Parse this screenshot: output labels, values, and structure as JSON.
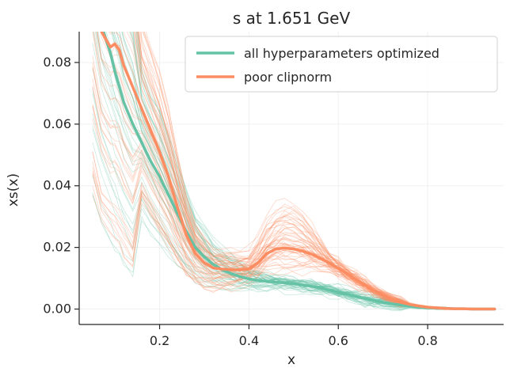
{
  "chart_data": {
    "type": "line",
    "title": "s at 1.651 GeV",
    "xlabel": "x",
    "ylabel": "xs(x)",
    "xlim": [
      0.02,
      0.97
    ],
    "ylim": [
      -0.005,
      0.09
    ],
    "xticks": [
      0.2,
      0.4,
      0.6,
      0.8
    ],
    "xtick_labels": [
      "0.2",
      "0.4",
      "0.6",
      "0.8"
    ],
    "yticks": [
      0.0,
      0.02,
      0.04,
      0.06,
      0.08
    ],
    "ytick_labels": [
      "0.00",
      "0.02",
      "0.04",
      "0.06",
      "0.08"
    ],
    "grid": true,
    "legend_position": "top-right",
    "replica_bands": true,
    "x": [
      0.05,
      0.07,
      0.09,
      0.1,
      0.11,
      0.12,
      0.14,
      0.16,
      0.18,
      0.2,
      0.22,
      0.24,
      0.26,
      0.28,
      0.3,
      0.32,
      0.34,
      0.36,
      0.38,
      0.4,
      0.42,
      0.44,
      0.46,
      0.48,
      0.5,
      0.52,
      0.54,
      0.56,
      0.58,
      0.6,
      0.62,
      0.64,
      0.66,
      0.68,
      0.7,
      0.72,
      0.74,
      0.76,
      0.78,
      0.8,
      0.82,
      0.84,
      0.86,
      0.88,
      0.9,
      0.92,
      0.95
    ],
    "series": [
      {
        "name": "all hyperparameters optimized",
        "color": "#66c2a5",
        "values": [
          0.11,
          0.092,
          0.083,
          0.077,
          0.072,
          0.067,
          0.06,
          0.054,
          0.048,
          0.043,
          0.037,
          0.031,
          0.025,
          0.02,
          0.017,
          0.0145,
          0.0128,
          0.0115,
          0.0105,
          0.0098,
          0.0093,
          0.009,
          0.0087,
          0.0085,
          0.0082,
          0.0078,
          0.0074,
          0.0068,
          0.0062,
          0.0055,
          0.0048,
          0.0041,
          0.0034,
          0.0028,
          0.0022,
          0.0017,
          0.0013,
          0.0009,
          0.0006,
          0.0004,
          0.0003,
          0.0002,
          0.0001,
          0.0001,
          0.0,
          0.0,
          0.0
        ]
      },
      {
        "name": "poor clipnorm",
        "color": "#fc8d62",
        "values": [
          0.11,
          0.09,
          0.085,
          0.086,
          0.084,
          0.079,
          0.072,
          0.065,
          0.058,
          0.051,
          0.043,
          0.033,
          0.024,
          0.018,
          0.015,
          0.0133,
          0.013,
          0.0128,
          0.0127,
          0.013,
          0.015,
          0.018,
          0.0195,
          0.0198,
          0.0195,
          0.0188,
          0.0178,
          0.0165,
          0.015,
          0.0132,
          0.0115,
          0.0095,
          0.0077,
          0.006,
          0.0045,
          0.0032,
          0.0022,
          0.0015,
          0.001,
          0.0006,
          0.0004,
          0.0002,
          0.0001,
          0.0001,
          0.0,
          0.0,
          0.0
        ]
      }
    ]
  }
}
